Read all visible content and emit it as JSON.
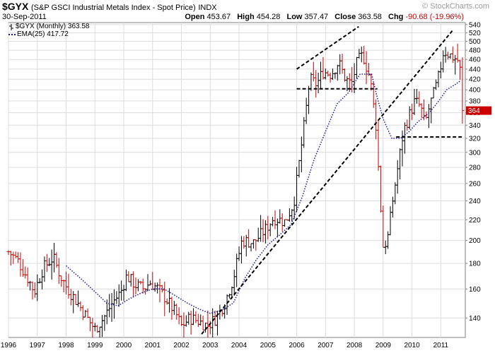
{
  "header": {
    "symbol": "$GYX",
    "description": "(S&P GSCI Industrial Metals Index - Spot Price)",
    "exchange": "INDX",
    "date": "30-Sep-2011",
    "watermark": "© StockCharts.com",
    "open_label": "Open",
    "open_value": "453.67",
    "high_label": "High",
    "high_value": "454.28",
    "low_label": "Low",
    "low_value": "357.47",
    "close_label": "Close",
    "close_value": "363.58",
    "chg_label": "Chg",
    "chg_value": "-90.68 (-19.96%)",
    "chg_color": "#cc0000"
  },
  "legend": {
    "price": "$GYX (Monthly) 363.58",
    "ema": "EMA(25) 417.72"
  },
  "colors": {
    "up": "#000000",
    "down": "#cc0000",
    "ema": "#1a1aa0",
    "grid": "#dcdcdc",
    "trendline": "#000000"
  },
  "chart_data": {
    "type": "ohlc",
    "scale": "log",
    "ylim": [
      128,
      545
    ],
    "xlim": [
      1996.0,
      2011.85
    ],
    "grid": true,
    "y_ticks": [
      140,
      160,
      180,
      200,
      220,
      240,
      260,
      280,
      300,
      320,
      340,
      360,
      380,
      400,
      420,
      440,
      460,
      480,
      500,
      520,
      540
    ],
    "x_ticks": [
      "1996",
      "1997",
      "1998",
      "1999",
      "2000",
      "2001",
      "2002",
      "2003",
      "2004",
      "2005",
      "2006",
      "2007",
      "2008",
      "2009",
      "2010",
      "2011"
    ],
    "series": [
      {
        "name": "$GYX (Monthly)",
        "kind": "price",
        "points": [
          [
            1996.0,
            190
          ],
          [
            1996.33,
            182
          ],
          [
            1996.67,
            168
          ],
          [
            1996.9,
            158
          ],
          [
            1997.2,
            176
          ],
          [
            1997.55,
            185
          ],
          [
            1997.8,
            170
          ],
          [
            1998.0,
            162
          ],
          [
            1998.4,
            150
          ],
          [
            1998.8,
            138
          ],
          [
            1999.0,
            133
          ],
          [
            1999.3,
            140
          ],
          [
            1999.6,
            150
          ],
          [
            1999.9,
            158
          ],
          [
            2000.1,
            170
          ],
          [
            2000.4,
            163
          ],
          [
            2000.7,
            160
          ],
          [
            2000.9,
            165
          ],
          [
            2001.2,
            160
          ],
          [
            2001.5,
            152
          ],
          [
            2001.8,
            143
          ],
          [
            2002.0,
            135
          ],
          [
            2002.3,
            140
          ],
          [
            2002.6,
            138
          ],
          [
            2002.9,
            135
          ],
          [
            2003.2,
            140
          ],
          [
            2003.5,
            150
          ],
          [
            2003.8,
            168
          ],
          [
            2004.1,
            200
          ],
          [
            2004.5,
            198
          ],
          [
            2004.9,
            210
          ],
          [
            2005.2,
            222
          ],
          [
            2005.6,
            218
          ],
          [
            2005.9,
            238
          ],
          [
            2006.1,
            290
          ],
          [
            2006.3,
            355
          ],
          [
            2006.45,
            420
          ],
          [
            2006.7,
            410
          ],
          [
            2006.9,
            435
          ],
          [
            2007.2,
            430
          ],
          [
            2007.45,
            455
          ],
          [
            2007.7,
            420
          ],
          [
            2007.9,
            410
          ],
          [
            2008.1,
            455
          ],
          [
            2008.3,
            470
          ],
          [
            2008.55,
            420
          ],
          [
            2008.75,
            340
          ],
          [
            2008.9,
            240
          ],
          [
            2009.0,
            195
          ],
          [
            2009.15,
            200
          ],
          [
            2009.35,
            245
          ],
          [
            2009.55,
            290
          ],
          [
            2009.7,
            330
          ],
          [
            2009.9,
            355
          ],
          [
            2010.1,
            380
          ],
          [
            2010.3,
            370
          ],
          [
            2010.45,
            340
          ],
          [
            2010.6,
            370
          ],
          [
            2010.8,
            400
          ],
          [
            2010.95,
            430
          ],
          [
            2011.1,
            480
          ],
          [
            2011.3,
            470
          ],
          [
            2011.5,
            462
          ],
          [
            2011.65,
            455
          ],
          [
            2011.75,
            363.58
          ]
        ]
      },
      {
        "name": "EMA(25)",
        "kind": "ema",
        "points": [
          [
            1998.0,
            178
          ],
          [
            1998.5,
            168
          ],
          [
            1999.0,
            158
          ],
          [
            1999.4,
            150
          ],
          [
            1999.8,
            148
          ],
          [
            2000.2,
            153
          ],
          [
            2000.6,
            157
          ],
          [
            2001.0,
            160
          ],
          [
            2001.4,
            160
          ],
          [
            2001.8,
            155
          ],
          [
            2002.2,
            150
          ],
          [
            2002.6,
            146
          ],
          [
            2003.0,
            143
          ],
          [
            2003.4,
            145
          ],
          [
            2003.8,
            150
          ],
          [
            2004.2,
            168
          ],
          [
            2004.6,
            183
          ],
          [
            2005.0,
            196
          ],
          [
            2005.4,
            205
          ],
          [
            2005.8,
            215
          ],
          [
            2006.2,
            245
          ],
          [
            2006.6,
            290
          ],
          [
            2007.0,
            330
          ],
          [
            2007.4,
            375
          ],
          [
            2007.8,
            395
          ],
          [
            2008.2,
            430
          ],
          [
            2008.6,
            430
          ],
          [
            2008.8,
            385
          ],
          [
            2009.0,
            350
          ],
          [
            2009.3,
            320
          ],
          [
            2009.6,
            320
          ],
          [
            2009.9,
            330
          ],
          [
            2010.2,
            345
          ],
          [
            2010.6,
            360
          ],
          [
            2010.9,
            378
          ],
          [
            2011.2,
            400
          ],
          [
            2011.5,
            410
          ],
          [
            2011.7,
            417.72
          ]
        ]
      }
    ],
    "trendlines": [
      {
        "name": "long-term uptrend",
        "from": [
          2002.7,
          130
        ],
        "to": [
          2011.4,
          525
        ]
      },
      {
        "name": "2006-2008 upper channel",
        "from": [
          2006.0,
          440
        ],
        "to": [
          2008.15,
          535
        ]
      },
      {
        "name": "2006-2008 support",
        "from": [
          2006.0,
          402
        ],
        "to": [
          2008.8,
          402
        ]
      },
      {
        "name": "2009-2011 support",
        "from": [
          2009.45,
          322
        ],
        "to": [
          2011.75,
          322
        ]
      }
    ]
  }
}
